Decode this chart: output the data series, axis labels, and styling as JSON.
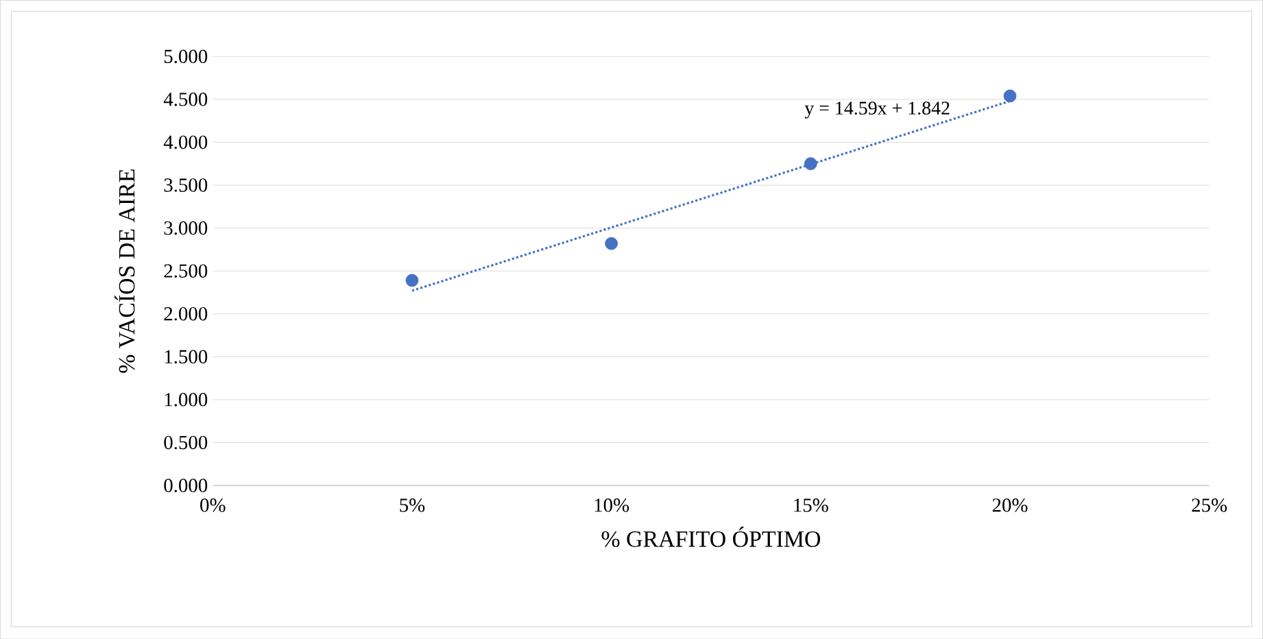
{
  "chart_data": {
    "type": "scatter",
    "xlabel": "% GRAFITO ÓPTIMO",
    "ylabel": "% VACÍOS DE AIRE",
    "x": [
      0.05,
      0.1,
      0.15,
      0.2
    ],
    "series": [
      {
        "color": "#4472c4",
        "marker": "circle",
        "values": [
          2.39,
          2.82,
          3.75,
          4.54
        ]
      },
      {
        "type": "line",
        "color": "#4472c4",
        "line_style": "dotted",
        "marker": "none",
        "x": [
          0.05,
          0.2
        ],
        "values": [
          2.27,
          4.48
        ]
      }
    ],
    "annotations": [
      "y = 14.59x + 1.842"
    ],
    "xlim": [
      0,
      0.25
    ],
    "xticks": [
      {
        "value": 0,
        "label": "0%"
      },
      {
        "value": 0.05,
        "label": "5%"
      },
      {
        "value": 0.1,
        "label": "10%"
      },
      {
        "value": 0.15,
        "label": "15%"
      },
      {
        "value": 0.2,
        "label": "20%"
      },
      {
        "value": 0.25,
        "label": "25%"
      }
    ],
    "ylim": [
      0,
      5
    ],
    "yticks": [
      {
        "value": 0,
        "label": "0.000"
      },
      {
        "value": 0.5,
        "label": "0.500"
      },
      {
        "value": 1,
        "label": "1.000"
      },
      {
        "value": 1.5,
        "label": "1.500"
      },
      {
        "value": 2,
        "label": "2.000"
      },
      {
        "value": 2.5,
        "label": "2.500"
      },
      {
        "value": 3,
        "label": "3.000"
      },
      {
        "value": 3.5,
        "label": "3.500"
      },
      {
        "value": 4,
        "label": "4.000"
      },
      {
        "value": 4.5,
        "label": "4.500"
      },
      {
        "value": 5,
        "label": "5.000"
      }
    ],
    "grid": "y",
    "legend": false
  }
}
